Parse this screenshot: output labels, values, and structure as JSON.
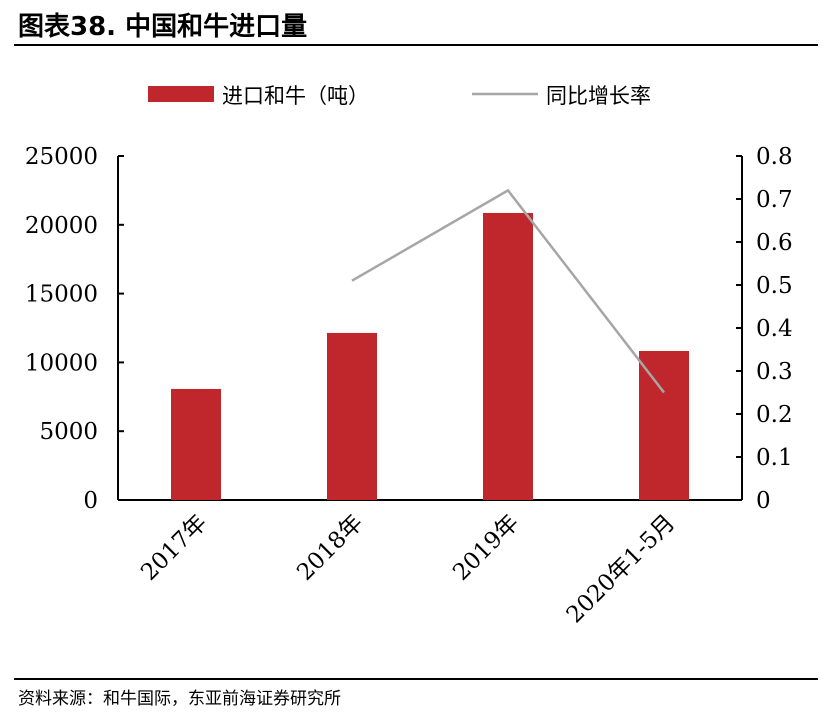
{
  "header": {
    "title": "图表38.  中国和牛进口量"
  },
  "footer": {
    "source": "资料来源：和牛国际，东亚前海证券研究所"
  },
  "chart_data": {
    "type": "bar+line",
    "title": "中国和牛进口量",
    "categories": [
      "2017年",
      "2018年",
      "2019年",
      "2020年1-5月"
    ],
    "series": [
      {
        "name": "进口和牛（吨）",
        "type": "bar",
        "axis": "left",
        "color": "#c0272d",
        "values": [
          8070,
          12140,
          20860,
          10830
        ]
      },
      {
        "name": "同比增长率",
        "type": "line",
        "axis": "right",
        "color": "#a6a6a6",
        "values": [
          null,
          0.51,
          0.72,
          0.25
        ]
      }
    ],
    "left_axis": {
      "ylim": [
        0,
        25000
      ],
      "ticks": [
        "0",
        "5000",
        "10000",
        "15000",
        "20000",
        "25000"
      ]
    },
    "right_axis": {
      "ylim": [
        0,
        0.8
      ],
      "ticks": [
        "0",
        "0.1",
        "0.2",
        "0.3",
        "0.4",
        "0.5",
        "0.6",
        "0.7",
        "0.8"
      ]
    },
    "legend": "top",
    "grid": false
  }
}
